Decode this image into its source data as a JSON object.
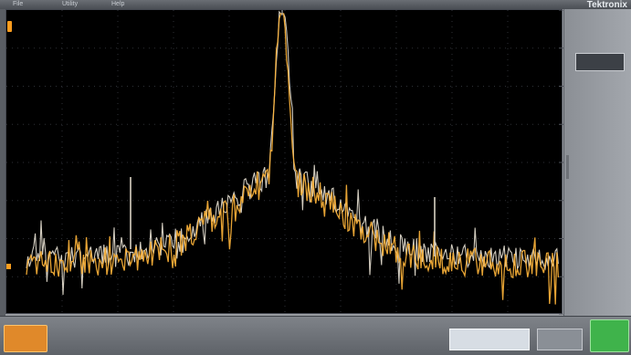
{
  "menu": {
    "items": [
      "File",
      "Utility",
      "Help"
    ],
    "brand": "Tektronix"
  },
  "right_panel": {
    "header": "",
    "box_label": ""
  },
  "bottom": {
    "channel_button": "",
    "position_label": "",
    "zoom_label": "",
    "trigger_info": "",
    "acquisition_info": "",
    "run_button": ""
  },
  "colors": {
    "trace_primary": "#ffb53a",
    "trace_secondary": "#ffffff",
    "channel_accent": "#e0892a",
    "run_accent": "#3fb34b",
    "screen_bg": "#000000"
  },
  "icons": {
    "channel_marker": "channel-1-marker-icon",
    "ground_marker": "ground-level-marker-icon"
  }
}
